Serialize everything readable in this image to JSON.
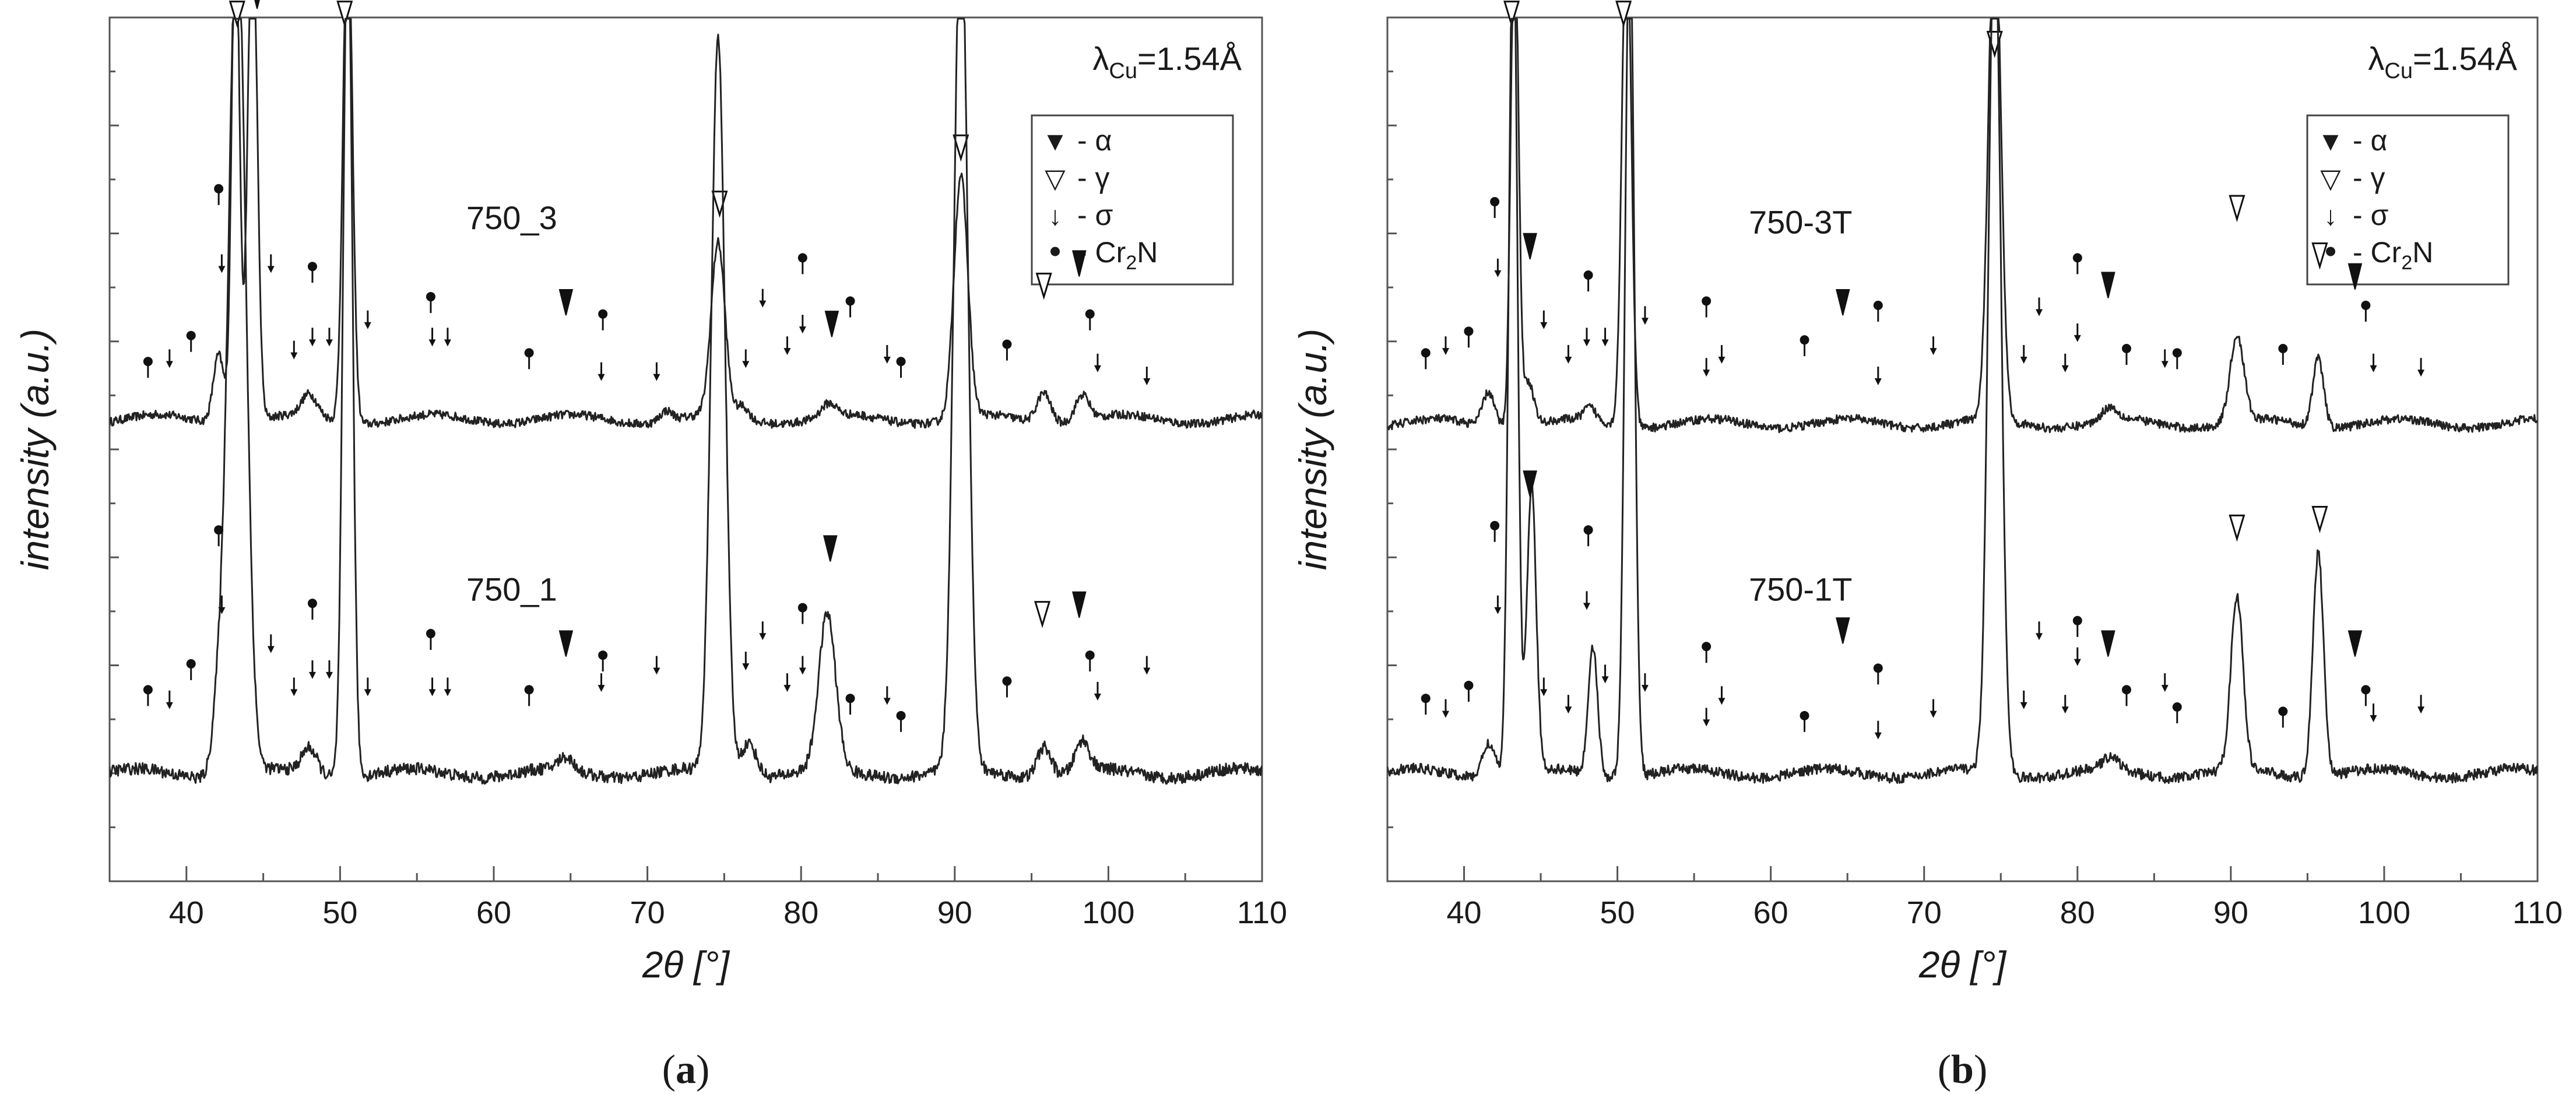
{
  "chart_data": [
    {
      "type": "line",
      "panel": "a",
      "caption_open": "(",
      "caption_letter": "a",
      "caption_close": ")",
      "xlabel": "2θ [°]",
      "ylabel": "intensity (a.u.)",
      "xlim": [
        35,
        110
      ],
      "ylim": [
        0,
        100
      ],
      "xticks": [
        "40",
        "50",
        "60",
        "70",
        "80",
        "90",
        "100",
        "110"
      ],
      "wavelength_label": "λ",
      "wavelength_sub": "Cu",
      "wavelength_value": "=1.54Å",
      "legend": {
        "alpha_sym": "▼",
        "alpha_text": "- α",
        "gamma_sym": "▽",
        "gamma_text": "- γ",
        "sigma_sym": "↓",
        "sigma_text": "- σ",
        "cr2n_sym": "•",
        "cr2n_text_a": "- Cr",
        "cr2n_sub": "2",
        "cr2n_text_b": "N"
      },
      "series": [
        {
          "name": "750_3",
          "baseline": 53.5,
          "noise": 0.5,
          "peaks": [
            {
              "x": 42.1,
              "h": 8,
              "w": 0.35
            },
            {
              "x": 43.2,
              "h": 60,
              "w": 0.25
            },
            {
              "x": 44.3,
              "h": 60,
              "w": 0.3
            },
            {
              "x": 48.0,
              "h": 2.5,
              "w": 0.5
            },
            {
              "x": 50.5,
              "h": 60,
              "w": 0.3
            },
            {
              "x": 71.2,
              "h": 1.2,
              "w": 0.4
            },
            {
              "x": 74.6,
              "h": 20,
              "w": 0.45
            },
            {
              "x": 76.2,
              "h": 1.5,
              "w": 0.4
            },
            {
              "x": 81.8,
              "h": 1.5,
              "w": 0.5
            },
            {
              "x": 90.4,
              "h": 28,
              "w": 0.45
            },
            {
              "x": 95.8,
              "h": 3.5,
              "w": 0.45
            },
            {
              "x": 98.3,
              "h": 3,
              "w": 0.45
            }
          ],
          "alpha_markers": [
            {
              "x": 44.6,
              "y": 102.5
            },
            {
              "x": 64.7,
              "y": 67.0
            },
            {
              "x": 82.0,
              "y": 64.5
            },
            {
              "x": 98.1,
              "y": 71.5
            }
          ],
          "gamma_markers": [
            {
              "x": 43.3,
              "y": 100.5
            },
            {
              "x": 50.3,
              "y": 100.5
            },
            {
              "x": 74.7,
              "y": 78.5
            },
            {
              "x": 90.4,
              "y": 85.0
            },
            {
              "x": 95.8,
              "y": 69.0
            }
          ],
          "sigma_markers": [
            {
              "x": 38.9,
              "y": 60.5
            },
            {
              "x": 42.3,
              "y": 71.5
            },
            {
              "x": 45.5,
              "y": 71.5
            },
            {
              "x": 47.0,
              "y": 61.5
            },
            {
              "x": 48.2,
              "y": 63.0
            },
            {
              "x": 49.3,
              "y": 63.0
            },
            {
              "x": 51.8,
              "y": 65.0
            },
            {
              "x": 56.0,
              "y": 63.0
            },
            {
              "x": 57.0,
              "y": 63.0
            },
            {
              "x": 67.0,
              "y": 59.0
            },
            {
              "x": 70.6,
              "y": 59.0
            },
            {
              "x": 76.4,
              "y": 60.5
            },
            {
              "x": 77.5,
              "y": 67.5
            },
            {
              "x": 79.1,
              "y": 62.0
            },
            {
              "x": 80.1,
              "y": 64.5
            },
            {
              "x": 85.6,
              "y": 61.0
            },
            {
              "x": 99.3,
              "y": 60.0
            },
            {
              "x": 102.5,
              "y": 58.5
            }
          ],
          "cr2n_markers": [
            {
              "x": 37.5,
              "y": 59.5
            },
            {
              "x": 40.3,
              "y": 62.5
            },
            {
              "x": 42.1,
              "y": 79.5
            },
            {
              "x": 48.2,
              "y": 70.5
            },
            {
              "x": 55.9,
              "y": 67.0
            },
            {
              "x": 62.3,
              "y": 60.5
            },
            {
              "x": 67.1,
              "y": 65.0
            },
            {
              "x": 80.1,
              "y": 71.5
            },
            {
              "x": 83.2,
              "y": 66.5
            },
            {
              "x": 86.5,
              "y": 59.5
            },
            {
              "x": 93.4,
              "y": 61.5
            },
            {
              "x": 98.8,
              "y": 65.0
            }
          ]
        },
        {
          "name": "750_1",
          "baseline": 12.5,
          "noise": 0.7,
          "peaks": [
            {
              "x": 42.1,
              "h": 8,
              "w": 0.4
            },
            {
              "x": 43.3,
              "h": 100,
              "w": 0.55
            },
            {
              "x": 48.0,
              "h": 3,
              "w": 0.5
            },
            {
              "x": 50.5,
              "h": 100,
              "w": 0.3
            },
            {
              "x": 64.7,
              "h": 1.5,
              "w": 0.5
            },
            {
              "x": 74.6,
              "h": 85,
              "w": 0.45
            },
            {
              "x": 76.6,
              "h": 4,
              "w": 0.5
            },
            {
              "x": 81.7,
              "h": 18,
              "w": 0.55
            },
            {
              "x": 90.4,
              "h": 100,
              "w": 0.45
            },
            {
              "x": 95.8,
              "h": 3.5,
              "w": 0.45
            },
            {
              "x": 98.3,
              "h": 3.5,
              "w": 0.45
            }
          ],
          "alpha_markers": [
            {
              "x": 64.7,
              "y": 27.5
            },
            {
              "x": 81.9,
              "y": 38.5
            },
            {
              "x": 98.1,
              "y": 32.0
            }
          ],
          "gamma_markers": [
            {
              "x": 95.7,
              "y": 31.0
            }
          ],
          "sigma_markers": [
            {
              "x": 38.9,
              "y": 21.0
            },
            {
              "x": 42.3,
              "y": 32.0
            },
            {
              "x": 45.5,
              "y": 27.5
            },
            {
              "x": 47.0,
              "y": 22.5
            },
            {
              "x": 48.2,
              "y": 24.5
            },
            {
              "x": 49.3,
              "y": 24.5
            },
            {
              "x": 51.8,
              "y": 22.5
            },
            {
              "x": 56.0,
              "y": 22.5
            },
            {
              "x": 57.0,
              "y": 22.5
            },
            {
              "x": 67.0,
              "y": 23.0
            },
            {
              "x": 70.6,
              "y": 25.0
            },
            {
              "x": 76.4,
              "y": 25.5
            },
            {
              "x": 77.5,
              "y": 29.0
            },
            {
              "x": 79.1,
              "y": 23.0
            },
            {
              "x": 80.1,
              "y": 25.0
            },
            {
              "x": 85.6,
              "y": 21.5
            },
            {
              "x": 99.3,
              "y": 22.0
            },
            {
              "x": 102.5,
              "y": 25.0
            }
          ],
          "cr2n_markers": [
            {
              "x": 37.5,
              "y": 21.5
            },
            {
              "x": 40.3,
              "y": 24.5
            },
            {
              "x": 42.1,
              "y": 40.0
            },
            {
              "x": 48.2,
              "y": 31.5
            },
            {
              "x": 55.9,
              "y": 28.0
            },
            {
              "x": 62.3,
              "y": 21.5
            },
            {
              "x": 67.1,
              "y": 25.5
            },
            {
              "x": 80.1,
              "y": 31.0
            },
            {
              "x": 83.2,
              "y": 20.5
            },
            {
              "x": 86.5,
              "y": 18.5
            },
            {
              "x": 93.4,
              "y": 22.5
            },
            {
              "x": 98.8,
              "y": 25.5
            }
          ]
        }
      ]
    },
    {
      "type": "line",
      "panel": "b",
      "caption_open": "(",
      "caption_letter": "b",
      "caption_close": ")",
      "xlabel": "2θ [°]",
      "ylabel": "intensity (a.u.)",
      "xlim": [
        35,
        110
      ],
      "ylim": [
        0,
        100
      ],
      "xticks": [
        "40",
        "50",
        "60",
        "70",
        "80",
        "90",
        "100",
        "110"
      ],
      "wavelength_label": "λ",
      "wavelength_sub": "Cu",
      "wavelength_value": "=1.54Å",
      "legend": {
        "alpha_sym": "▼",
        "alpha_text": "- α",
        "gamma_sym": "▽",
        "gamma_text": "- γ",
        "sigma_sym": "↓",
        "sigma_text": "- σ",
        "cr2n_sym": "•",
        "cr2n_text_a": "- Cr",
        "cr2n_sub": "2",
        "cr2n_text_b": "N"
      },
      "series": [
        {
          "name": "750-3T",
          "baseline": 53.0,
          "noise": 0.5,
          "peaks": [
            {
              "x": 41.6,
              "h": 4,
              "w": 0.4
            },
            {
              "x": 43.3,
              "h": 60,
              "w": 0.25
            },
            {
              "x": 44.2,
              "h": 5,
              "w": 0.35
            },
            {
              "x": 48.2,
              "h": 1.5,
              "w": 0.4
            },
            {
              "x": 50.6,
              "h": 60,
              "w": 0.3
            },
            {
              "x": 74.6,
              "h": 60,
              "w": 0.4
            },
            {
              "x": 82.1,
              "h": 1.5,
              "w": 0.5
            },
            {
              "x": 90.4,
              "h": 10,
              "w": 0.45
            },
            {
              "x": 95.7,
              "h": 8,
              "w": 0.35
            }
          ],
          "alpha_markers": [
            {
              "x": 44.3,
              "y": 73.5
            },
            {
              "x": 64.7,
              "y": 67.0
            },
            {
              "x": 82.0,
              "y": 69.0
            },
            {
              "x": 98.1,
              "y": 70.0
            }
          ],
          "gamma_markers": [
            {
              "x": 43.1,
              "y": 100.5
            },
            {
              "x": 50.4,
              "y": 100.5
            },
            {
              "x": 74.6,
              "y": 97.0
            },
            {
              "x": 90.4,
              "y": 78.0
            },
            {
              "x": 95.8,
              "y": 72.5
            }
          ],
          "sigma_markers": [
            {
              "x": 38.8,
              "y": 62.0
            },
            {
              "x": 42.2,
              "y": 71.0
            },
            {
              "x": 45.2,
              "y": 65.0
            },
            {
              "x": 46.8,
              "y": 61.0
            },
            {
              "x": 48.0,
              "y": 63.0
            },
            {
              "x": 49.2,
              "y": 63.0
            },
            {
              "x": 51.8,
              "y": 65.5
            },
            {
              "x": 55.8,
              "y": 59.5
            },
            {
              "x": 56.8,
              "y": 61.0
            },
            {
              "x": 67.0,
              "y": 58.5
            },
            {
              "x": 70.6,
              "y": 62.0
            },
            {
              "x": 76.5,
              "y": 61.0
            },
            {
              "x": 77.5,
              "y": 66.5
            },
            {
              "x": 79.2,
              "y": 60.0
            },
            {
              "x": 80.0,
              "y": 63.5
            },
            {
              "x": 85.7,
              "y": 60.5
            },
            {
              "x": 99.3,
              "y": 60.0
            },
            {
              "x": 102.4,
              "y": 59.5
            }
          ],
          "cr2n_markers": [
            {
              "x": 37.5,
              "y": 60.5
            },
            {
              "x": 40.3,
              "y": 63.0
            },
            {
              "x": 42.0,
              "y": 78.0
            },
            {
              "x": 48.1,
              "y": 69.5
            },
            {
              "x": 55.8,
              "y": 66.5
            },
            {
              "x": 62.2,
              "y": 62.0
            },
            {
              "x": 67.0,
              "y": 66.0
            },
            {
              "x": 80.0,
              "y": 71.5
            },
            {
              "x": 83.2,
              "y": 61.0
            },
            {
              "x": 86.5,
              "y": 60.5
            },
            {
              "x": 93.4,
              "y": 61.0
            },
            {
              "x": 98.8,
              "y": 66.0
            }
          ]
        },
        {
          "name": "750-1T",
          "baseline": 12.5,
          "noise": 0.6,
          "peaks": [
            {
              "x": 41.6,
              "h": 4,
              "w": 0.4
            },
            {
              "x": 43.2,
              "h": 100,
              "w": 0.28
            },
            {
              "x": 44.4,
              "h": 33,
              "w": 0.3
            },
            {
              "x": 48.4,
              "h": 15,
              "w": 0.3
            },
            {
              "x": 50.8,
              "h": 100,
              "w": 0.3
            },
            {
              "x": 74.6,
              "h": 100,
              "w": 0.4
            },
            {
              "x": 82.2,
              "h": 1.5,
              "w": 0.5
            },
            {
              "x": 90.4,
              "h": 20,
              "w": 0.4
            },
            {
              "x": 95.7,
              "h": 26,
              "w": 0.35
            }
          ],
          "alpha_markers": [
            {
              "x": 44.3,
              "y": 46.0
            },
            {
              "x": 64.7,
              "y": 29.0
            },
            {
              "x": 82.0,
              "y": 27.5
            },
            {
              "x": 98.1,
              "y": 27.5
            }
          ],
          "gamma_markers": [
            {
              "x": 90.4,
              "y": 41.0
            },
            {
              "x": 95.8,
              "y": 42.0
            }
          ],
          "sigma_markers": [
            {
              "x": 38.8,
              "y": 20.0
            },
            {
              "x": 42.2,
              "y": 32.0
            },
            {
              "x": 45.2,
              "y": 22.5
            },
            {
              "x": 46.8,
              "y": 20.5
            },
            {
              "x": 48.0,
              "y": 32.5
            },
            {
              "x": 49.2,
              "y": 24.0
            },
            {
              "x": 51.8,
              "y": 23.0
            },
            {
              "x": 55.8,
              "y": 19.0
            },
            {
              "x": 56.8,
              "y": 21.5
            },
            {
              "x": 67.0,
              "y": 17.5
            },
            {
              "x": 70.6,
              "y": 20.0
            },
            {
              "x": 76.5,
              "y": 21.0
            },
            {
              "x": 77.5,
              "y": 29.0
            },
            {
              "x": 79.2,
              "y": 20.5
            },
            {
              "x": 80.0,
              "y": 26.0
            },
            {
              "x": 85.7,
              "y": 23.0
            },
            {
              "x": 99.3,
              "y": 19.5
            },
            {
              "x": 102.4,
              "y": 20.5
            }
          ],
          "cr2n_markers": [
            {
              "x": 37.5,
              "y": 20.5
            },
            {
              "x": 40.3,
              "y": 22.0
            },
            {
              "x": 42.0,
              "y": 40.5
            },
            {
              "x": 48.1,
              "y": 40.0
            },
            {
              "x": 55.8,
              "y": 26.5
            },
            {
              "x": 62.2,
              "y": 18.5
            },
            {
              "x": 67.0,
              "y": 24.0
            },
            {
              "x": 80.0,
              "y": 29.5
            },
            {
              "x": 83.2,
              "y": 21.5
            },
            {
              "x": 86.5,
              "y": 19.5
            },
            {
              "x": 93.4,
              "y": 19.0
            },
            {
              "x": 98.8,
              "y": 21.5
            }
          ]
        }
      ]
    }
  ]
}
